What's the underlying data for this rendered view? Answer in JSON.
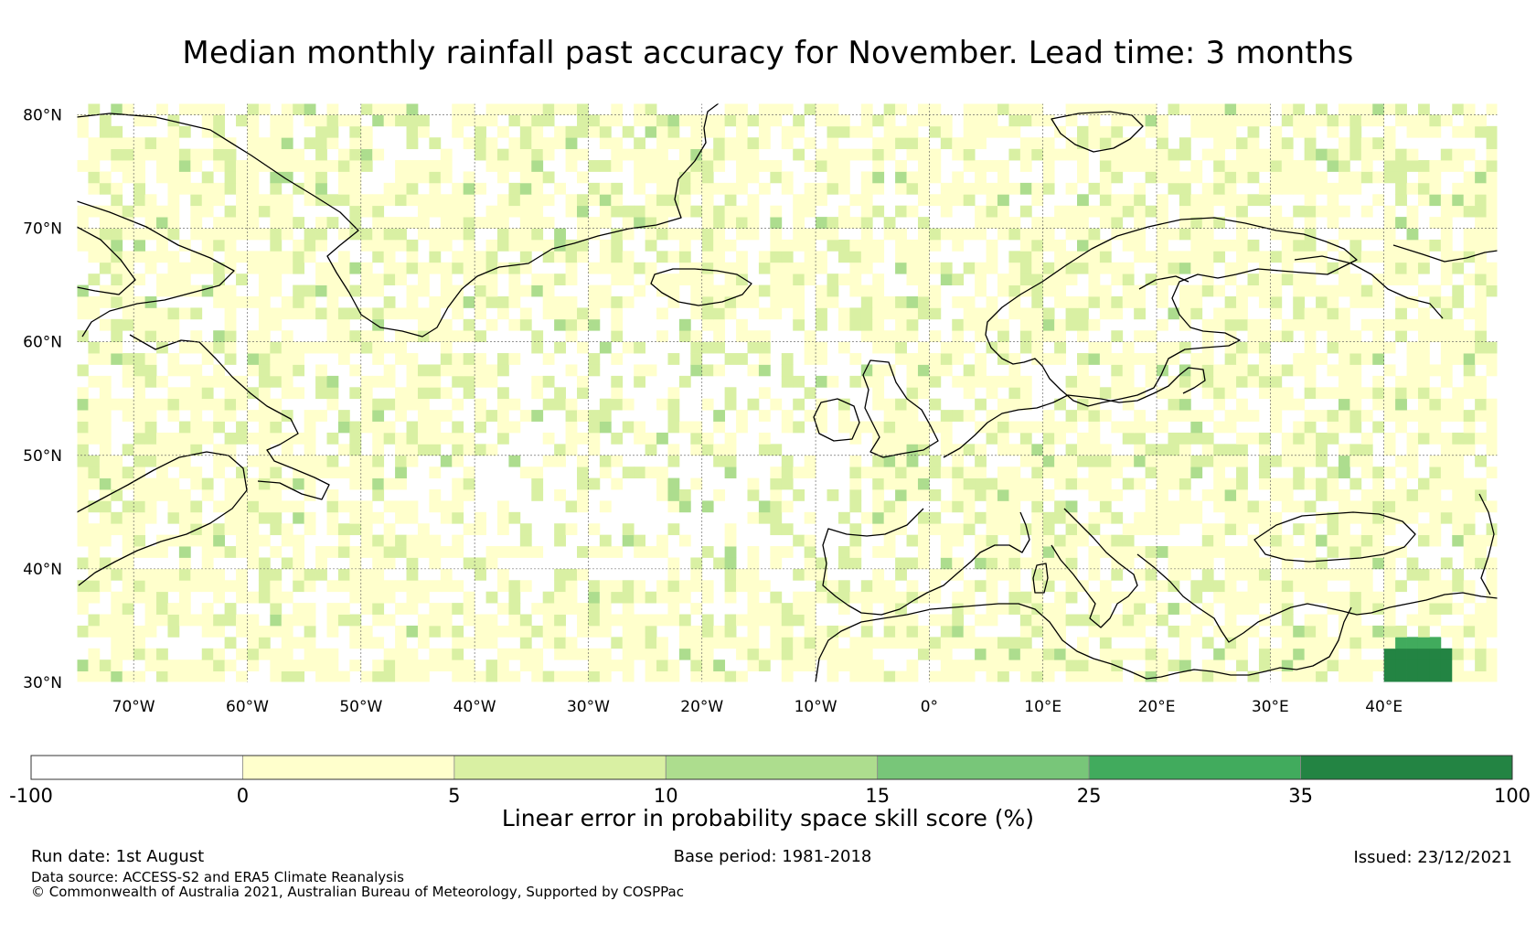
{
  "title": "Median monthly rainfall past accuracy for November. Lead time: 3 months",
  "map": {
    "lon_range": [
      -75,
      50
    ],
    "lat_range": [
      30,
      81
    ],
    "lat_ticks": [
      {
        "value": 80,
        "label": "80°N"
      },
      {
        "value": 70,
        "label": "70°N"
      },
      {
        "value": 60,
        "label": "60°N"
      },
      {
        "value": 50,
        "label": "50°N"
      },
      {
        "value": 40,
        "label": "40°N"
      },
      {
        "value": 30,
        "label": "30°N"
      }
    ],
    "lon_ticks": [
      {
        "value": -70,
        "label": "70°W"
      },
      {
        "value": -60,
        "label": "60°W"
      },
      {
        "value": -50,
        "label": "50°W"
      },
      {
        "value": -40,
        "label": "40°W"
      },
      {
        "value": -30,
        "label": "30°W"
      },
      {
        "value": -20,
        "label": "20°W"
      },
      {
        "value": -10,
        "label": "10°W"
      },
      {
        "value": 0,
        "label": "0°"
      },
      {
        "value": 10,
        "label": "10°E"
      },
      {
        "value": 20,
        "label": "20°E"
      },
      {
        "value": 30,
        "label": "30°E"
      },
      {
        "value": 40,
        "label": "40°E"
      }
    ],
    "gridlines": true,
    "high_skill_region": {
      "lon": [
        40,
        46
      ],
      "lat": [
        30,
        34
      ],
      "category_color": "#238443"
    }
  },
  "colorbar": {
    "title": "Linear error in probability space skill score (%)",
    "boundaries": [
      "-100",
      "0",
      "5",
      "10",
      "15",
      "25",
      "35",
      "100"
    ],
    "colors": [
      "#ffffff",
      "#ffffcc",
      "#d9f0a3",
      "#addd8e",
      "#78c679",
      "#41ab5d",
      "#238443"
    ]
  },
  "footer": {
    "run_date": "Run date: 1st August",
    "base_period": "Base period: 1981-2018",
    "issued": "Issued: 23/12/2021",
    "data_source": "Data source: ACCESS-S2 and ERA5 Climate Reanalysis",
    "copyright": "© Commonwealth of Australia 2021, Australian Bureau of Meteorology, Supported by COSPPac"
  }
}
